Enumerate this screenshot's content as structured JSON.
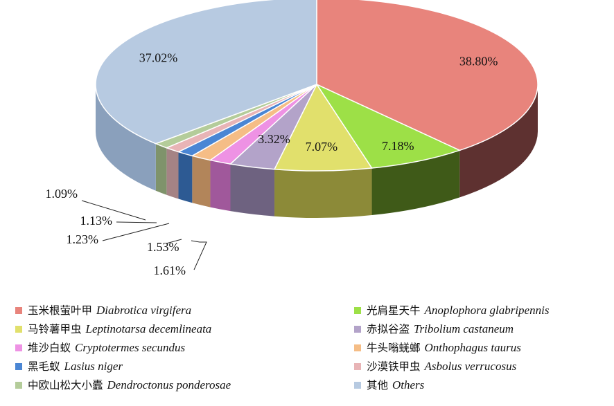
{
  "chart_data": {
    "type": "pie",
    "title": "",
    "slices": [
      {
        "cn": "玉米根萤叶甲",
        "sci": "Diabrotica virgifera",
        "label": "38.80%",
        "value": 38.8,
        "color": "#e8847c",
        "side": "#5e3130"
      },
      {
        "cn": "光肩星天牛",
        "sci": "Anoplophora glabripennis",
        "label": "7.18%",
        "value": 7.18,
        "color": "#9de047",
        "side": "#3f5a18"
      },
      {
        "cn": "马铃薯甲虫",
        "sci": "Leptinotarsa decemlineata",
        "label": "7.07%",
        "value": 7.07,
        "color": "#e1e06c",
        "side": "#8c8a38"
      },
      {
        "cn": "赤拟谷盗",
        "sci": "Tribolium castaneum",
        "label": "3.32%",
        "value": 3.32,
        "color": "#b3a3c9",
        "side": "#6e6280"
      },
      {
        "cn": "堆沙白蚁",
        "sci": "Cryptotermes secundus",
        "label": "1.61%",
        "value": 1.61,
        "color": "#ee92e4",
        "side": "#a0589b"
      },
      {
        "cn": "牛头嗡蜣螂",
        "sci": "Onthophagus taurus",
        "label": "1.53%",
        "value": 1.53,
        "color": "#f5bd86",
        "side": "#b2855a"
      },
      {
        "cn": "黑毛蚁",
        "sci": "Lasius niger",
        "label": "1.23%",
        "value": 1.23,
        "color": "#4a86d4",
        "side": "#2d5a93"
      },
      {
        "cn": "沙漠铁甲虫",
        "sci": "Asbolus verrucosus",
        "label": "1.13%",
        "value": 1.13,
        "color": "#e8b4b6",
        "side": "#a58385"
      },
      {
        "cn": "中欧山松大小蠹",
        "sci": "Dendroctonus ponderosae",
        "label": "1.09%",
        "value": 1.09,
        "color": "#b4cc9a",
        "side": "#7f936b"
      },
      {
        "cn": "其他",
        "sci": "Others",
        "label": "37.02%",
        "value": 37.02,
        "color": "#b7cae1",
        "side": "#8aa0bc"
      }
    ]
  },
  "legend": {
    "left": [
      {
        "cn": "玉米根萤叶甲",
        "sci": "Diabrotica virgifera",
        "color": "#e8847c"
      },
      {
        "cn": "马铃薯甲虫",
        "sci": "Leptinotarsa decemlineata",
        "color": "#e1e06c"
      },
      {
        "cn": "堆沙白蚁",
        "sci": "Cryptotermes secundus",
        "color": "#ee92e4"
      },
      {
        "cn": "黑毛蚁",
        "sci": "Lasius niger",
        "color": "#4a86d4"
      },
      {
        "cn": "中欧山松大小蠹",
        "sci": "Dendroctonus ponderosae",
        "color": "#b4cc9a"
      }
    ],
    "right": [
      {
        "cn": "光肩星天牛",
        "sci": "Anoplophora glabripennis",
        "color": "#9de047"
      },
      {
        "cn": "赤拟谷盗",
        "sci": "Tribolium castaneum",
        "color": "#b3a3c9"
      },
      {
        "cn": "牛头嗡蜣螂",
        "sci": "Onthophagus taurus",
        "color": "#f5bd86"
      },
      {
        "cn": "沙漠铁甲虫",
        "sci": "Asbolus verrucosus",
        "color": "#e8b4b6"
      },
      {
        "cn": "其他",
        "sci": "Others",
        "color": "#b7cae1"
      }
    ]
  }
}
